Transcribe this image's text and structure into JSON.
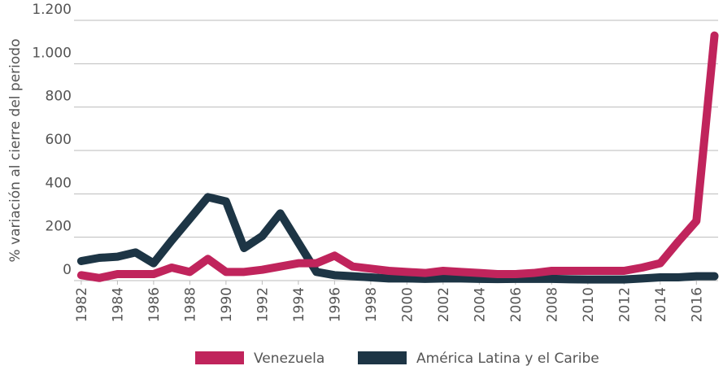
{
  "chart_data": {
    "type": "line",
    "y_label": "% variación al cierre del periodo",
    "x": [
      1982,
      1983,
      1984,
      1985,
      1986,
      1987,
      1988,
      1989,
      1990,
      1991,
      1992,
      1993,
      1994,
      1995,
      1996,
      1997,
      1998,
      1999,
      2000,
      2001,
      2002,
      2003,
      2004,
      2005,
      2006,
      2007,
      2008,
      2009,
      2010,
      2011,
      2012,
      2013,
      2014,
      2015,
      2016,
      2017
    ],
    "series": [
      {
        "name": "América Latina y el Caribe",
        "color": "#1d3545",
        "values": [
          90,
          105,
          110,
          130,
          80,
          185,
          285,
          385,
          365,
          150,
          205,
          310,
          175,
          40,
          25,
          20,
          15,
          10,
          10,
          8,
          10,
          10,
          8,
          7,
          8,
          8,
          8,
          6,
          5,
          5,
          5,
          10,
          15,
          15,
          20,
          20
        ]
      },
      {
        "name": "Venezuela",
        "color": "#c0245c",
        "values": [
          25,
          12,
          30,
          30,
          30,
          60,
          40,
          100,
          40,
          40,
          50,
          65,
          80,
          80,
          115,
          65,
          55,
          45,
          40,
          35,
          45,
          40,
          35,
          30,
          30,
          35,
          45,
          45,
          45,
          45,
          45,
          60,
          80,
          180,
          275,
          1130
        ]
      }
    ],
    "legend_order": [
      "Venezuela",
      "América Latina y el Caribe"
    ],
    "xlim": [
      1981.6,
      2017.2
    ],
    "xticks": [
      1982,
      1984,
      1986,
      1988,
      1990,
      1992,
      1994,
      1996,
      1998,
      2000,
      2002,
      2004,
      2006,
      2008,
      2010,
      2012,
      2014,
      2016
    ],
    "ylim": [
      0,
      1200
    ],
    "yticks": [
      0,
      200,
      400,
      600,
      800,
      {
        "value": 1000,
        "label": "1.000"
      },
      {
        "value": 1200,
        "label": "1.200"
      }
    ],
    "grid": true
  }
}
